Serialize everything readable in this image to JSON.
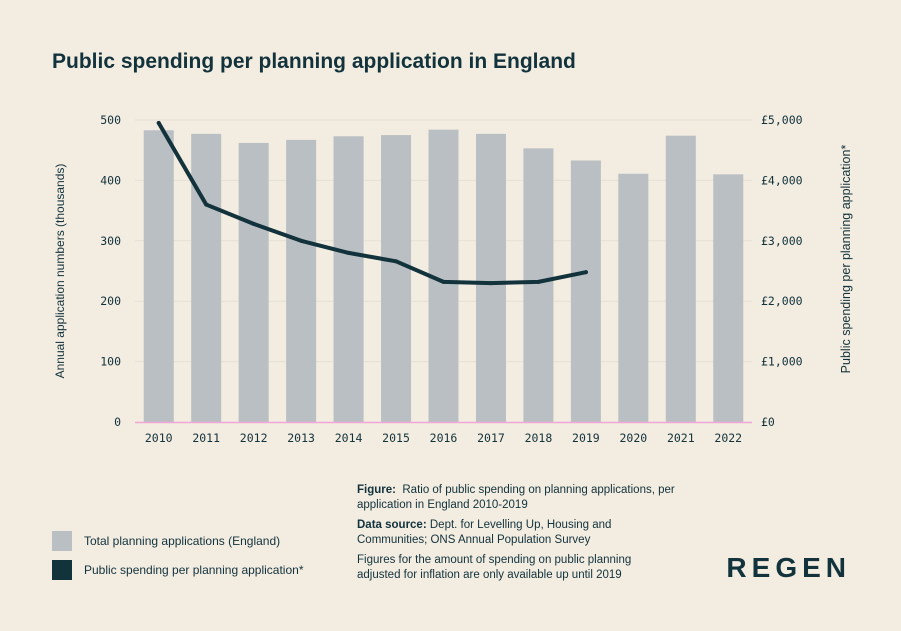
{
  "title": "Public spending per planning application in England",
  "chart_data": {
    "type": "bar",
    "categories": [
      "2010",
      "2011",
      "2012",
      "2013",
      "2014",
      "2015",
      "2016",
      "2017",
      "2018",
      "2019",
      "2020",
      "2021",
      "2022"
    ],
    "series": [
      {
        "name": "Total planning applications (England)",
        "type": "bar",
        "axis": "left",
        "values": [
          483,
          477,
          462,
          467,
          473,
          475,
          484,
          477,
          453,
          433,
          411,
          474,
          410
        ]
      },
      {
        "name": "Public spending per planning application*",
        "type": "line",
        "axis": "right",
        "values": [
          4950,
          3600,
          3280,
          3000,
          2800,
          2660,
          2320,
          2300,
          2320,
          2480,
          null,
          null,
          null
        ]
      }
    ],
    "ylabel": "Annual application numbers (thousands)",
    "y2label": "Public spending per planning application*",
    "ylim": [
      0,
      500
    ],
    "y2lim": [
      0,
      5000
    ],
    "yticks": [
      "0",
      "100",
      "200",
      "300",
      "400",
      "500"
    ],
    "y2ticks": [
      "£0",
      "£1,000",
      "£2,000",
      "£3,000",
      "£4,000",
      "£5,000"
    ],
    "grid": true,
    "legend_position": "bottom-left",
    "colors": {
      "bar": "#b9bfc3",
      "line": "#12323c",
      "baseline": "#f0a7d6",
      "grid": "#e6e0d4"
    }
  },
  "legend": [
    {
      "label": "Total planning applications (England)",
      "color": "#b9bfc3"
    },
    {
      "label": "Public spending per planning application*",
      "color": "#12323c"
    }
  ],
  "notes": {
    "figure_label": "Figure:",
    "figure_text": "Ratio of public spending on planning applications, per application in England 2010-2019",
    "source_label": "Data source:",
    "source_text": "Dept. for Levelling Up, Housing and Communities; ONS Annual Population Survey",
    "footnote": "Figures for the amount of spending on public planning adjusted for inflation are only available up until 2019"
  },
  "logo": "REGEN"
}
